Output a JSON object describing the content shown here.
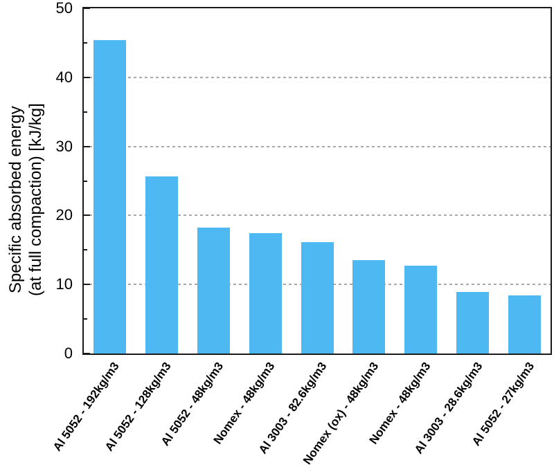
{
  "chart_data": {
    "type": "bar",
    "title": "",
    "xlabel": "",
    "ylabel": "Specific absorbed energy (at full compaction) [kJ/kg]",
    "ylabel_lines": [
      "Specific absorbed energy",
      "(at full compaction) [kJ/kg]"
    ],
    "categories": [
      "Al 5052 - 192kg/m3",
      "Al 5052 - 128kg/m3",
      "Al 5052 - 48kg/m3",
      "Nomex - 48kg/m3",
      "Al 3003 - 82.6kg/m3",
      "Nomex (ox) - 48kg/m3",
      "Nomex - 48kg/m3",
      "Al 3003 - 28.6kg/m3",
      "Al 5052 - 27kg/m3"
    ],
    "values": [
      45.4,
      25.7,
      18.2,
      17.4,
      16.1,
      13.5,
      12.7,
      8.9,
      8.4
    ],
    "ylim": [
      0,
      50
    ],
    "yticks": [
      0,
      10,
      20,
      30,
      40,
      50
    ],
    "yminorticks": [
      5,
      15,
      25,
      35,
      45
    ],
    "gridlines": [
      10,
      20,
      30,
      40
    ],
    "grid_style": "dashed",
    "legend": "none",
    "colors": {
      "bar": "#4DB8F2",
      "gridline": "#a8a8a8",
      "spine": "#1a1a1a",
      "text": "#000000"
    },
    "xlabel_rotation_deg": 55
  }
}
